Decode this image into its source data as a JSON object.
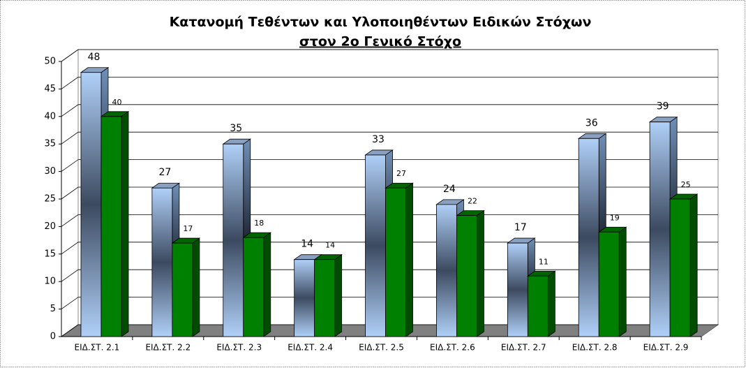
{
  "chart_data": {
    "type": "bar3d",
    "title": "Κατανομή Τεθέντων και Υλοποιηθέντων Ειδικών Στόχων",
    "subtitle": "στον 2ο Γενικό Στόχο",
    "categories": [
      "ΕΙΔ.ΣΤ.  2.1",
      "ΕΙΔ.ΣΤ.  2.2",
      "ΕΙΔ.ΣΤ.  2.3",
      "ΕΙΔ.ΣΤ.  2.4",
      "ΕΙΔ.ΣΤ.  2.5",
      "ΕΙΔ.ΣΤ.  2.6",
      "ΕΙΔ.ΣΤ.  2.7",
      "ΕΙΔ.ΣΤ.  2.8",
      "ΕΙΔ.ΣΤ.  2.9"
    ],
    "series": [
      {
        "color": "#a8c8f0",
        "values": [
          48,
          27,
          35,
          14,
          33,
          24,
          17,
          36,
          39
        ]
      },
      {
        "color": "#008000",
        "values": [
          40,
          17,
          18,
          14,
          27,
          22,
          11,
          19,
          25
        ]
      }
    ],
    "ylim": [
      0,
      50
    ],
    "yticks": [
      0,
      5,
      10,
      15,
      20,
      25,
      30,
      35,
      40,
      45,
      50
    ],
    "grid": true
  }
}
